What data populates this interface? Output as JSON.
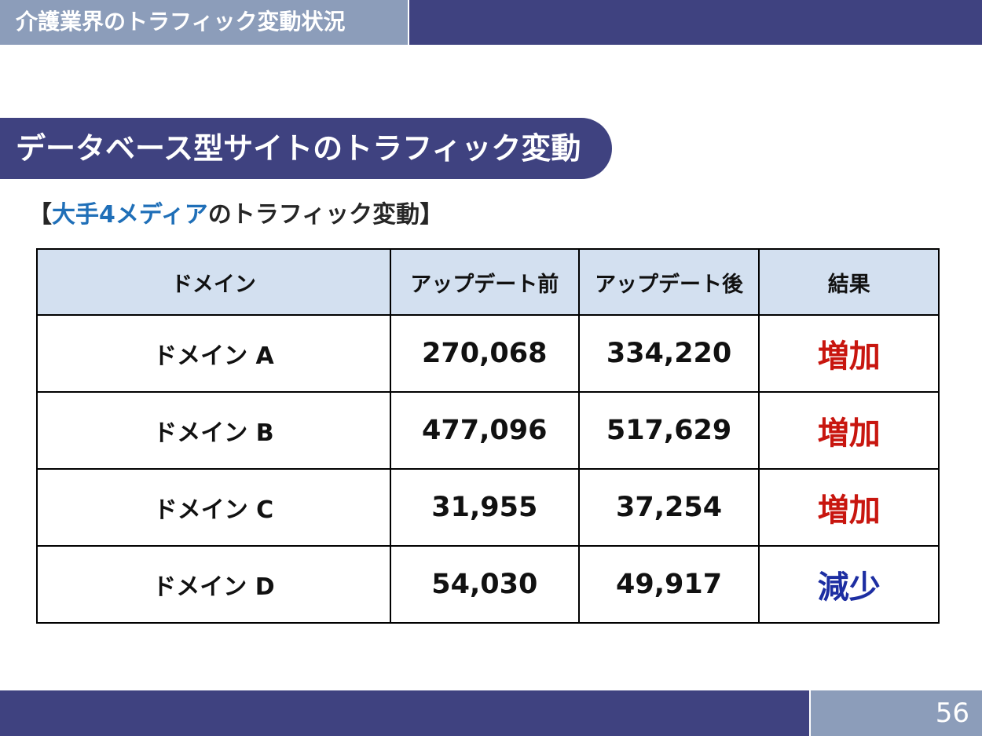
{
  "header": {
    "title": "介護業界のトラフィック変動状況"
  },
  "section": {
    "title": "データベース型サイトのトラフィック変動"
  },
  "subheading": {
    "open_bracket": "【",
    "accent": "大手4メディア",
    "rest": "のトラフィック変動",
    "close_bracket": "】"
  },
  "table": {
    "headers": [
      "ドメイン",
      "アップデート前",
      "アップデート後",
      "結果"
    ],
    "rows": [
      {
        "domain": "ドメイン  A",
        "before": "270,068",
        "after": "334,220",
        "result": "増加"
      },
      {
        "domain": "ドメイン  B",
        "before": "477,096",
        "after": "517,629",
        "result": "増加"
      },
      {
        "domain": "ドメイン  C",
        "before": "31,955",
        "after": "37,254",
        "result": "増加"
      },
      {
        "domain": "ドメイン  D",
        "before": "54,030",
        "after": "49,917",
        "result": "減少"
      }
    ]
  },
  "colors": {
    "navy": "#3f4280",
    "slate": "#8c9dba",
    "header_cell": "#d3e0f0",
    "increase": "#c8160f",
    "decrease": "#1d2ea2",
    "accent_blue": "#1f6fb8"
  },
  "footer": {
    "page_number": "56"
  }
}
